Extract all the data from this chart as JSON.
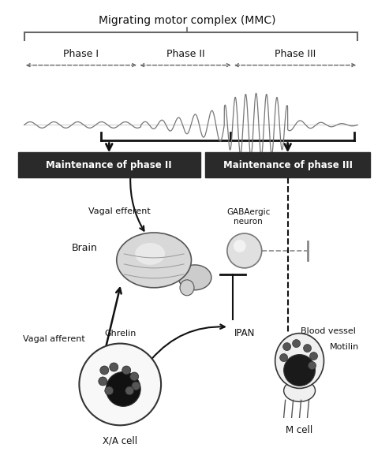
{
  "title": "Migrating motor complex (MMC)",
  "phase_labels": [
    "Phase I",
    "Phase II",
    "Phase III"
  ],
  "box1_text": "Maintenance of phase II",
  "box2_text": "Maintenance of phase III",
  "label_vagal_efferent": "Vagal efferent",
  "label_brain": "Brain",
  "label_vagal_afferent": "Vagal afferent",
  "label_ghrelin": "Ghrelin",
  "label_xa_cell": "X/A cell",
  "label_gabaergic": "GABAergic\nneuron",
  "label_ipan": "IPAN",
  "label_blood_vessel": "Blood vessel",
  "label_motilin": "Motilin",
  "label_m_cell": "M cell",
  "bg_color": "#ffffff",
  "box_bg": "#2a2a2a",
  "box_text_color": "#ffffff",
  "line_color": "#666666",
  "arrow_color": "#111111",
  "wave_color": "#777777"
}
